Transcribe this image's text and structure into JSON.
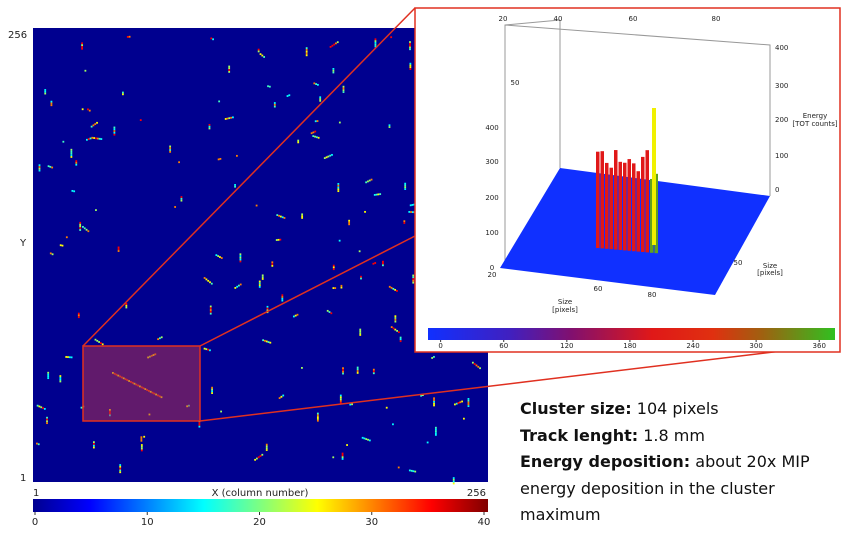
{
  "detector_map": {
    "y_label": "Y",
    "y_top": "256",
    "y_bottom": "1",
    "x_label": "X (column number)",
    "x_left": "1",
    "x_right": "256",
    "colorbar": {
      "range": [
        0,
        40
      ],
      "ticks": [
        0,
        10,
        20,
        30,
        40
      ]
    }
  },
  "inset": {
    "top_ticks": [
      "20",
      "40",
      "60",
      "80"
    ],
    "back_ticks": [
      "50"
    ],
    "left_z_ticks": [
      "400",
      "300",
      "200",
      "100",
      "0"
    ],
    "right_z_ticks": [
      "400",
      "300",
      "200",
      "100",
      "0"
    ],
    "z_label": [
      "Energy",
      "[TOT counts]"
    ],
    "front_ticks": [
      "20",
      "60",
      "80"
    ],
    "front_label": [
      "Size",
      "[pixels]"
    ],
    "side_tick": "50",
    "side_label": [
      "Size",
      "[pixels]"
    ],
    "colorbar": {
      "range": [
        -12,
        375
      ],
      "ticks": [
        0,
        60,
        120,
        180,
        240,
        300,
        360
      ]
    }
  },
  "caption": [
    {
      "label": "Cluster size:",
      "text": "104 pixels"
    },
    {
      "label": "Track lenght:",
      "text": "1.8 mm"
    },
    {
      "label": "Energy deposition:",
      "text": "about 20x MIP",
      "more": [
        "energy deposition in the cluster",
        "maximum"
      ]
    }
  ]
}
